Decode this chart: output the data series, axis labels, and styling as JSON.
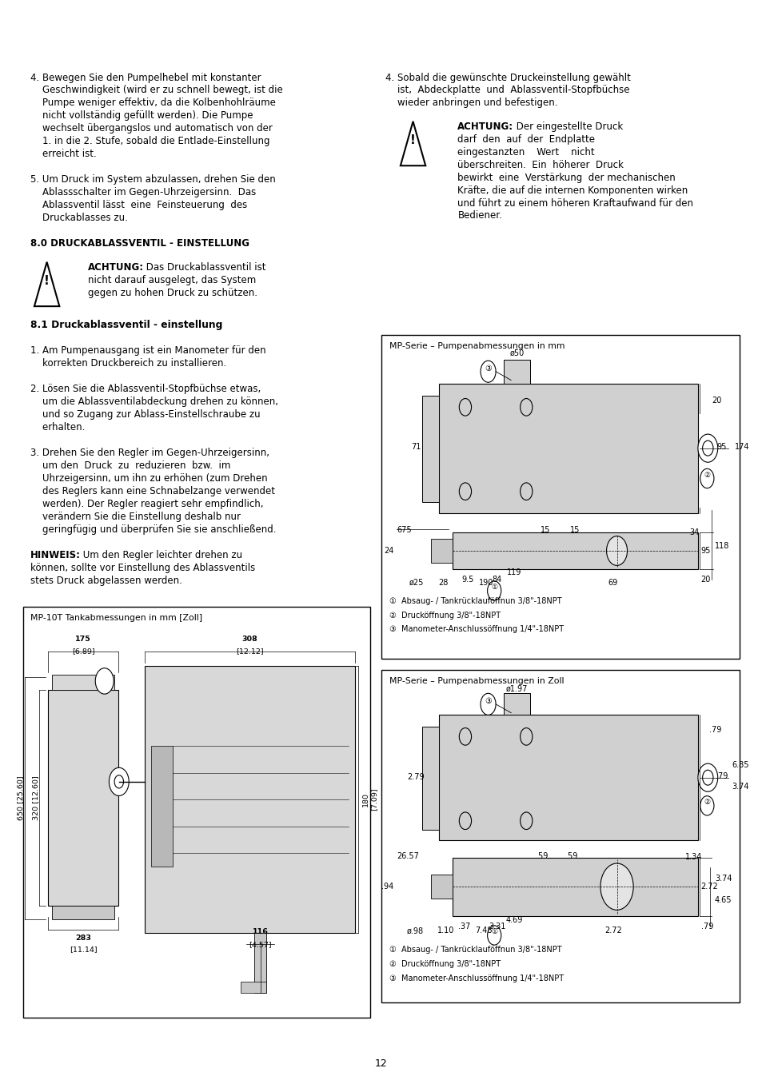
{
  "page_bg": "#ffffff",
  "text_color": "#000000",
  "body_font": 8.5,
  "bold_font": 9.0,
  "title_font": 10.0,
  "para_4_left": [
    "4. Bewegen Sie den Pumpelhebel mit konstanter",
    "    Geschwindigkeit (wird er zu schnell bewegt, ist die",
    "    Pumpe weniger effektiv, da die Kolbenhohlräume",
    "    nicht vollständig gefüllt werden). Die Pumpe",
    "    wechselt übergangslos und automatisch von der",
    "    1. in die 2. Stufe, sobald die Entlade-Einstellung",
    "    erreicht ist."
  ],
  "para_5_left": [
    "5. Um Druck im System abzulassen, drehen Sie den",
    "    Ablassschalter im Gegen-Uhrzeigersinn.  Das",
    "    Ablassventil lässt  eine  Feinsteuerung  des",
    "    Druckablasses zu."
  ],
  "section_8": "8.0 DRUCKABLASSVENTIL - EINSTELLUNG",
  "achtung_1_bold": "ACHTUNG:",
  "achtung_1_text": [
    " Das Druckablassventil ist",
    "nicht darauf ausgelegt, das System",
    "gegen zu hohen Druck zu schützen."
  ],
  "section_81": "8.1 Druckablassventil - einstellung",
  "para_1_81": [
    "1. Am Pumpenausgang ist ein Manometer für den",
    "    korrekten Druckbereich zu installieren."
  ],
  "para_2_81": [
    "2. Lösen Sie die Ablassventil-Stopfbüchse etwas,",
    "    um die Ablassventilabdeckung drehen zu können,",
    "    und so Zugang zur Ablass-Einstellschraube zu",
    "    erhalten."
  ],
  "para_3_81": [
    "3. Drehen Sie den Regler im Gegen-Uhrzeigersinn,",
    "    um den  Druck  zu  reduzieren  bzw.  im",
    "    Uhrzeigersinn, um ihn zu erhöhen (zum Drehen",
    "    des Reglers kann eine Schnabelzange verwendet",
    "    werden). Der Regler reagiert sehr empfindlich,",
    "    verändern Sie die Einstellung deshalb nur",
    "    geringfügig und überprüfen Sie sie anschließend."
  ],
  "hinweis_bold": "HINWEIS:",
  "hinweis_text": [
    " Um den Regler leichter drehen zu",
    "können, sollte vor Einstellung des Ablassventils",
    "stets Druck abgelassen werden."
  ],
  "para_4_right": [
    "4. Sobald die gewünschte Druckeinstellung gewählt",
    "    ist,  Abdeckplatte  und  Ablassventil-Stopfbüchse",
    "    wieder anbringen und befestigen."
  ],
  "achtung_2_bold": "ACHTUNG:",
  "achtung_2_text": [
    " Der eingestellte Druck",
    "darf  den  auf  der  Endplatte",
    "eingestanzten    Wert    nicht",
    "überschreiten.  Ein  höherer  Druck",
    "bewirkt  eine  Verstärkung  der mechanischen",
    "Kräfte, die auf die internen Komponenten wirken",
    "und führt zu einem höheren Kraftaufwand für den",
    "Bediener."
  ],
  "page_number": "12",
  "diagram_mm_title": "MP-Serie – Pumpenabmessungen in mm",
  "diagram_zoll_title": "MP-Serie – Pumpenabmessungen in Zoll",
  "diagram_tank_title": "MP-10T Tankabmessungen in mm [Zoll]",
  "legend_1": "①  Absaug- / Tankrücklauföffnun 3/8\"-18NPT",
  "legend_2": "②  Drucköffnung 3/8\"-18NPT",
  "legend_3": "③  Manometer-Anschlussöffnung 1/4\"-18NPT"
}
